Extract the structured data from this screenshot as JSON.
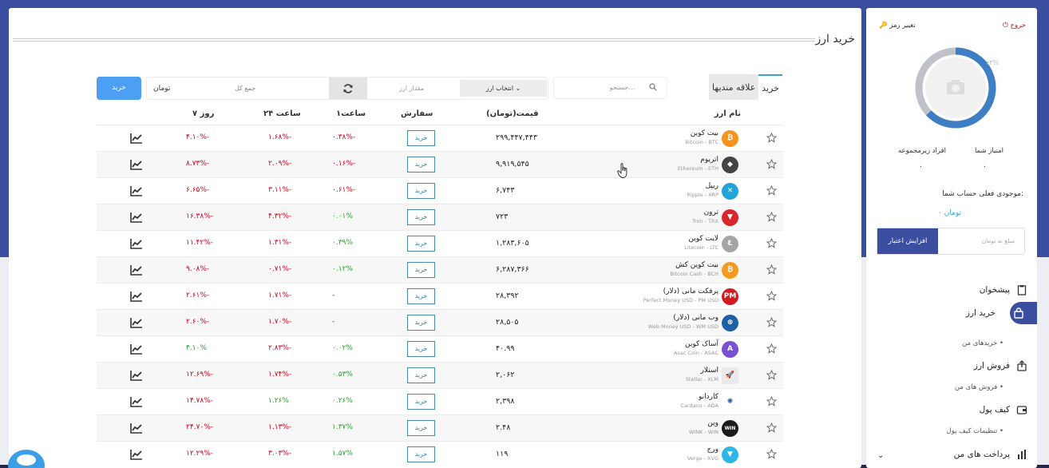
{
  "page": {
    "title": "خرید ارز"
  },
  "tabs": [
    {
      "label": "خرید"
    },
    {
      "label": "علاقه مندیها"
    }
  ],
  "search": {
    "placeholder": "جستجو..."
  },
  "order": {
    "toman_label": "تومان",
    "total_placeholder": "جمع کل",
    "amount_placeholder": "مقدار ارز",
    "currency_select": "انتخاب ارز",
    "buy_label": "خرید"
  },
  "table": {
    "headers": {
      "name": "نام ارز",
      "price": "قیمت(تومان)",
      "order": "سفارش",
      "h1": "۱ساعت",
      "h24": "۲۴ ساعت",
      "d7": "۷ روز"
    },
    "rows": [
      {
        "fa": "بیت کوین",
        "en": "Bitcoin - BTC",
        "price": "۲۹۹,۴۴۷,۴۴۳",
        "order": "خرید",
        "h1": "۰.۳۸%-",
        "h24": "۱.۶۸%-",
        "d7": "۴.۱۰%-",
        "h1c": "red",
        "h24c": "red",
        "d7c": "red",
        "logo_color": "#f7931a",
        "logo_text": "₿"
      },
      {
        "fa": "اتریوم",
        "en": "Ethereum - ETH",
        "price": "۹,۹۱۹,۵۴۵",
        "order": "خرید",
        "h1": "۰.۱۶%-",
        "h24": "۲.۰۹%-",
        "d7": "۸.۷۳%-",
        "h1c": "red",
        "h24c": "red",
        "d7c": "red",
        "logo_color": "#444444",
        "logo_text": "◆"
      },
      {
        "fa": "ریپل",
        "en": "Ripple - XRP",
        "price": "۶,۷۴۳",
        "order": "خرید",
        "h1": "۰.۶۱%-",
        "h24": "۳.۱۱%-",
        "d7": "۶.۶۵%-",
        "h1c": "red",
        "h24c": "red",
        "d7c": "red",
        "logo_color": "#23a4d8",
        "logo_text": "✕"
      },
      {
        "fa": "ترون",
        "en": "Tron - TRX",
        "price": "۷۲۳",
        "order": "خرید",
        "h1": "۰.۰۱%",
        "h24": "۴.۳۲%-",
        "d7": "۱۶.۳۸%-",
        "h1c": "green",
        "h24c": "red",
        "d7c": "red",
        "logo_color": "#d7262c",
        "logo_text": "▼"
      },
      {
        "fa": "لایت کوین",
        "en": "Litecoin - LTC",
        "price": "۱,۲۸۳,۶۰۵",
        "order": "خرید",
        "h1": "۰.۳۹%",
        "h24": "۱.۳۱%-",
        "d7": "۱۱.۴۲%-",
        "h1c": "green",
        "h24c": "red",
        "d7c": "red",
        "logo_color": "#a5a5a5",
        "logo_text": "Ł"
      },
      {
        "fa": "بیت کوین کش",
        "en": "Bitcoin Cash - BCH",
        "price": "۶,۲۸۷,۳۶۶",
        "order": "خرید",
        "h1": "۰.۱۲%",
        "h24": "۰.۷۱%-",
        "d7": "۹.۰۸%-",
        "h1c": "green",
        "h24c": "red",
        "d7c": "red",
        "logo_color": "#f29b21",
        "logo_text": "₿"
      },
      {
        "fa": "پرفکت مانی (دلار)",
        "en": "Perfect Money USD - PM USD",
        "price": "۲۸,۳۹۲",
        "order": "خرید",
        "h1": "-",
        "h24": "۱.۷۱%-",
        "d7": "۲.۶۱%-",
        "h1c": "dash",
        "h24c": "red",
        "d7c": "red",
        "logo_color": "#d41a1f",
        "logo_text": "PM"
      },
      {
        "fa": "وب مانی (دلار)",
        "en": "Web Money USD - WM USD",
        "price": "۲۸,۵۰۵",
        "order": "خرید",
        "h1": "-",
        "h24": "۱.۷۰%-",
        "d7": "۲.۶۰%-",
        "h1c": "dash",
        "h24c": "red",
        "d7c": "red",
        "logo_color": "#1f5fa8",
        "logo_text": "⊕"
      },
      {
        "fa": "آساک کوین",
        "en": "Asac Coin - ASAC",
        "price": "۴۰.۹۹",
        "order": "خرید",
        "h1": "۰.۰۲%",
        "h24": "۲.۸۳%-",
        "d7": "۴.۱۰%",
        "h1c": "green",
        "h24c": "red",
        "d7c": "green",
        "logo_color": "#7b4fd6",
        "logo_text": "A"
      },
      {
        "fa": "استلار",
        "en": "Stellar - XLM",
        "price": "۲,۰۶۲",
        "order": "خرید",
        "h1": "۰.۵۳%",
        "h24": "۱.۷۴%-",
        "d7": "۱۲.۶۹%-",
        "h1c": "green",
        "h24c": "red",
        "d7c": "red",
        "logo_color": "#eaeaea",
        "logo_text": "🚀"
      },
      {
        "fa": "کاردانو",
        "en": "Cardano - ADA",
        "price": "۲,۳۹۸",
        "order": "خرید",
        "h1": "۰.۲۶%",
        "h24": "۱.۲۶%",
        "d7": "۱۴.۷۸%-",
        "h1c": "green",
        "h24c": "green",
        "d7c": "red",
        "logo_color": "#ffffff",
        "logo_text": "✺"
      },
      {
        "fa": "وین",
        "en": "WINK - WIN",
        "price": "۲.۴۸",
        "order": "خرید",
        "h1": "۱.۳۷%",
        "h24": "۱.۱۳%-",
        "d7": "۲۴.۷۰%-",
        "h1c": "green",
        "h24c": "red",
        "d7c": "red",
        "logo_color": "#1b1b1b",
        "logo_text": "WIN"
      },
      {
        "fa": "ورج",
        "en": "Verge - XVG",
        "price": "۱۱۹",
        "order": "خرید",
        "h1": "۱.۵۷%",
        "h24": "۳.۰۳%-",
        "d7": "۱۲.۲۹%-",
        "h1c": "green",
        "h24c": "red",
        "d7c": "red",
        "logo_color": "#2bb7e8",
        "logo_text": "▼"
      }
    ]
  },
  "sidebar": {
    "logout": "خروج",
    "change_password": "تغییر رمز",
    "percent": "۶۳%",
    "score_label": "امتیاز شما",
    "score_value": "۰",
    "sub_label": "افراد زیرمجموعه",
    "sub_value": "۰",
    "balance_label": "موجودی فعلی حساب شما:",
    "balance_value": "۰ تومان",
    "credit_placeholder": "مبلغ به تومان",
    "credit_button": "افزایش اعتبار",
    "menu": [
      {
        "label": "پیشخوان"
      },
      {
        "label": "خرید ارز"
      },
      {
        "label": "خریدهای من"
      },
      {
        "label": "فروش ارز"
      },
      {
        "label": "فروش های من"
      },
      {
        "label": "کیف پول"
      },
      {
        "label": "تنظیمات کیف پول"
      },
      {
        "label": "پرداخت های من"
      }
    ]
  },
  "colors": {
    "accent": "#3c4ea0",
    "buy_button": "#4c9ff3",
    "down": "#d0021b",
    "up": "#2e9e33"
  }
}
